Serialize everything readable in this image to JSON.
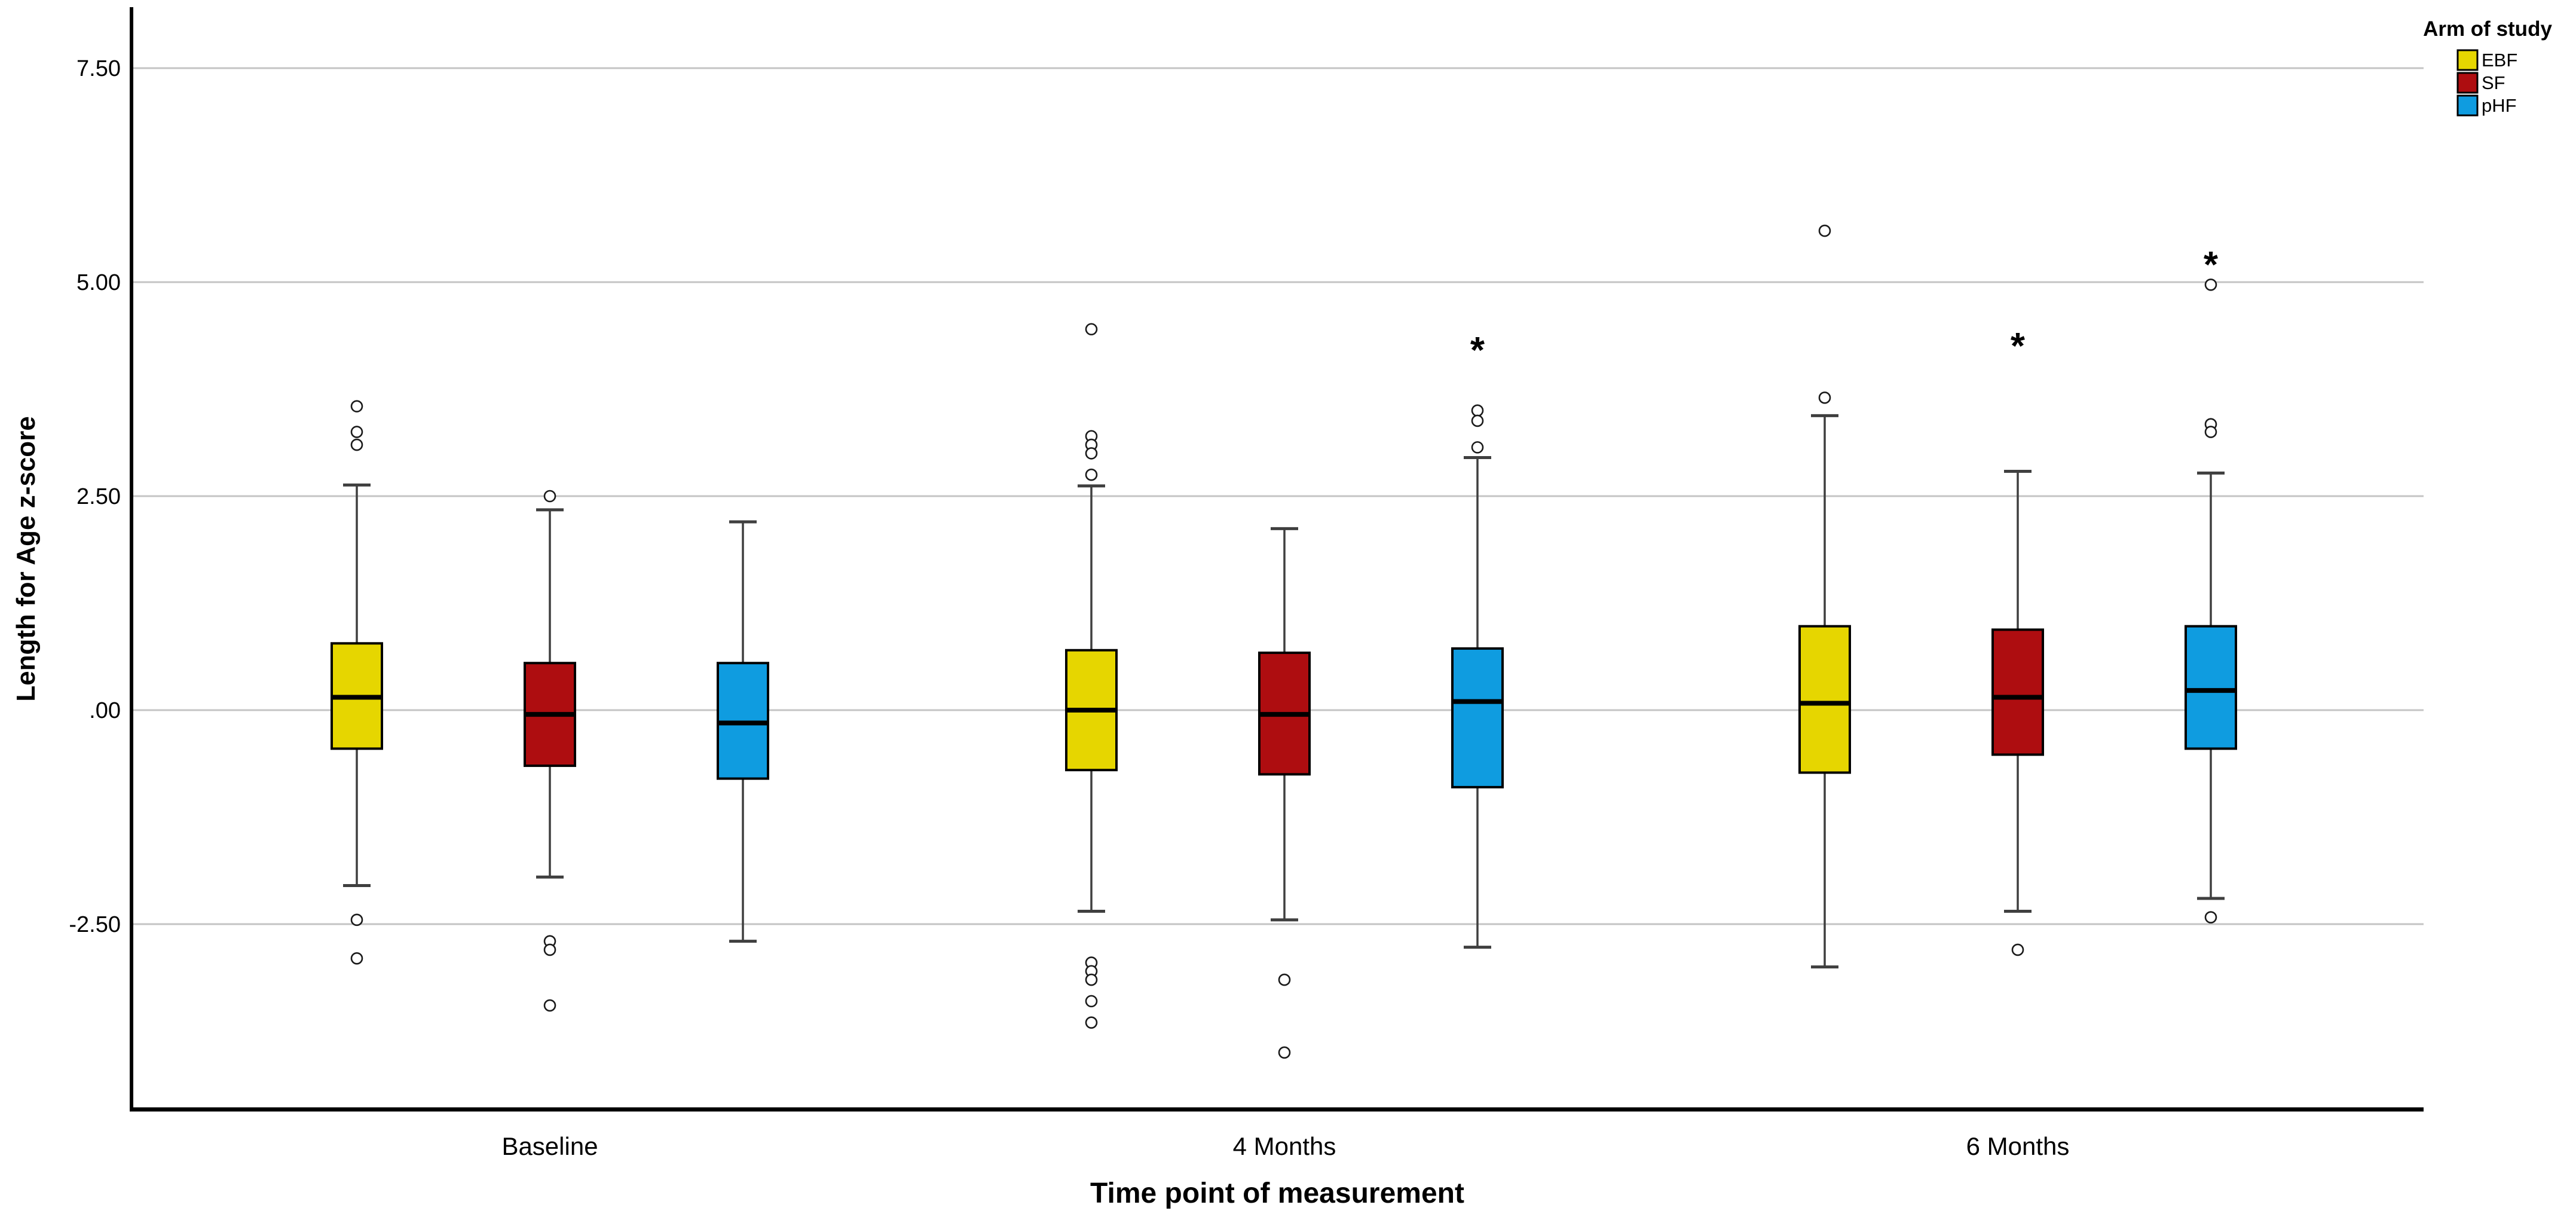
{
  "chart_data": {
    "type": "boxplot",
    "title": "",
    "xlabel": "Time point of measurement",
    "ylabel": "Length for Age z-score",
    "categories": [
      "Baseline",
      "4 Months",
      "6 Months"
    ],
    "y_axis": {
      "ticks": [
        {
          "label": "7.50",
          "value": 7.5
        },
        {
          "label": "5.00",
          "value": 5.0
        },
        {
          "label": "2.50",
          "value": 2.5
        },
        {
          "label": ".00",
          "value": 0.0
        },
        {
          "label": "-2.50",
          "value": -2.5
        }
      ],
      "min": -4.6,
      "max": 8.2,
      "grid": true
    },
    "legend": {
      "title": "Arm of study",
      "position": "top-right",
      "entries": [
        {
          "label": "EBF",
          "color": "#E6D600"
        },
        {
          "label": "SF",
          "color": "#AE0D10"
        },
        {
          "label": "pHF",
          "color": "#0F9CE0"
        }
      ]
    },
    "series": [
      {
        "name": "EBF",
        "color": "#E6D600",
        "boxes": [
          {
            "category": "Baseline",
            "whisker_low": -2.05,
            "q1": -0.45,
            "median": 0.15,
            "q3": 0.78,
            "whisker_high": 2.63,
            "outliers": [
              3.55,
              3.25,
              3.1,
              -2.45,
              -2.9
            ],
            "extremes": []
          },
          {
            "category": "4 Months",
            "whisker_low": -2.35,
            "q1": -0.7,
            "median": 0.0,
            "q3": 0.7,
            "whisker_high": 2.62,
            "outliers": [
              4.45,
              3.2,
              3.1,
              3.0,
              2.75,
              -2.95,
              -3.05,
              -3.15,
              -3.4,
              -3.65
            ],
            "extremes": []
          },
          {
            "category": "6 Months",
            "whisker_low": -3.0,
            "q1": -0.73,
            "median": 0.08,
            "q3": 0.98,
            "whisker_high": 3.44,
            "outliers": [
              5.6,
              3.65
            ],
            "extremes": []
          }
        ]
      },
      {
        "name": "SF",
        "color": "#AE0D10",
        "boxes": [
          {
            "category": "Baseline",
            "whisker_low": -1.95,
            "q1": -0.65,
            "median": -0.05,
            "q3": 0.55,
            "whisker_high": 2.34,
            "outliers": [
              2.5,
              -2.7,
              -2.8,
              -3.45
            ],
            "extremes": []
          },
          {
            "category": "4 Months",
            "whisker_low": -2.45,
            "q1": -0.75,
            "median": -0.05,
            "q3": 0.67,
            "whisker_high": 2.12,
            "outliers": [
              -3.15,
              -4.0
            ],
            "extremes": []
          },
          {
            "category": "6 Months",
            "whisker_low": -2.35,
            "q1": -0.52,
            "median": 0.15,
            "q3": 0.94,
            "whisker_high": 2.79,
            "outliers": [
              -2.8
            ],
            "extremes": [
              4.4
            ]
          }
        ]
      },
      {
        "name": "pHF",
        "color": "#0F9CE0",
        "boxes": [
          {
            "category": "Baseline",
            "whisker_low": -2.7,
            "q1": -0.8,
            "median": -0.15,
            "q3": 0.55,
            "whisker_high": 2.2,
            "outliers": [],
            "extremes": []
          },
          {
            "category": "4 Months",
            "whisker_low": -2.77,
            "q1": -0.9,
            "median": 0.1,
            "q3": 0.72,
            "whisker_high": 2.95,
            "outliers": [
              3.5,
              3.38,
              3.07
            ],
            "extremes": [
              4.35
            ]
          },
          {
            "category": "6 Months",
            "whisker_low": -2.2,
            "q1": -0.45,
            "median": 0.23,
            "q3": 0.98,
            "whisker_high": 2.77,
            "outliers": [
              4.97,
              3.34,
              3.25,
              -2.42
            ],
            "extremes": [
              5.35
            ]
          }
        ]
      }
    ],
    "marker_legend": {
      "outlier": "o",
      "extreme": "*"
    }
  },
  "colors": {
    "background": "#ffffff",
    "gridline": "#c4c4c4",
    "axis": "#000000",
    "whisker": "#3f3f3f",
    "box_border": "#000000",
    "median": "#000000",
    "outlier_stroke": "#1a1a1a"
  }
}
